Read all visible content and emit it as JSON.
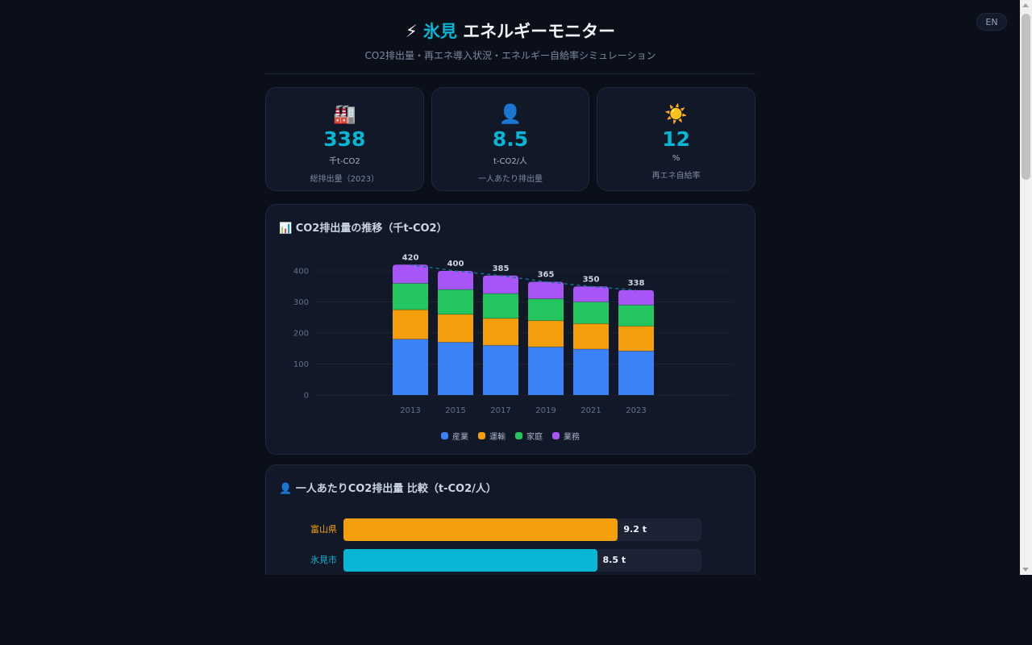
{
  "lang_toggle": "EN",
  "header": {
    "icon": "⚡",
    "title_accent": "氷見",
    "title_rest": " エネルギーモニター",
    "subtitle": "CO2排出量・再エネ導入状況・エネルギー自給率シミュレーション"
  },
  "stats": [
    {
      "icon": "🏭",
      "icon_name": "factory-icon",
      "value": "338",
      "unit": "千t-CO2",
      "label": "総排出量（2023）"
    },
    {
      "icon": "👤",
      "icon_name": "person-icon",
      "value": "8.5",
      "unit": "t-CO2/人",
      "label": "一人あたり排出量"
    },
    {
      "icon": "☀️",
      "icon_name": "sun-icon",
      "value": "12",
      "unit": "%",
      "label": "再エネ自給率"
    }
  ],
  "emissions_chart": {
    "icon": "📊",
    "title": "CO2排出量の推移（千t-CO2）"
  },
  "comparison": {
    "icon": "👤",
    "title": "一人あたりCO2排出量 比較（t-CO2/人）",
    "max": 12,
    "rows": [
      {
        "label": "富山県",
        "value": 9.2,
        "display": "9.2 t",
        "color": "#f59e0b"
      },
      {
        "label": "氷見市",
        "value": 8.5,
        "display": "8.5 t",
        "color": "#06b6d4"
      }
    ]
  },
  "colors": {
    "accent": "#06b6d4",
    "industry": "#3b82f6",
    "transport": "#f59e0b",
    "household": "#22c55e",
    "business": "#a855f7",
    "trend": "#0e7490"
  },
  "chart_data": {
    "type": "bar",
    "stacked": true,
    "title": "CO2排出量の推移（千t-CO2）",
    "xlabel": "",
    "ylabel": "千t-CO2",
    "categories": [
      "2013",
      "2015",
      "2017",
      "2019",
      "2021",
      "2023"
    ],
    "series": [
      {
        "name": "産業",
        "color": "#3b82f6",
        "values": [
          180,
          170,
          160,
          155,
          148,
          142
        ]
      },
      {
        "name": "運輸",
        "color": "#f59e0b",
        "values": [
          95,
          90,
          87,
          85,
          82,
          80
        ]
      },
      {
        "name": "家庭",
        "color": "#22c55e",
        "values": [
          85,
          80,
          80,
          70,
          70,
          68
        ]
      },
      {
        "name": "業務",
        "color": "#a855f7",
        "values": [
          60,
          60,
          58,
          55,
          50,
          48
        ]
      }
    ],
    "totals": [
      420,
      400,
      385,
      365,
      350,
      338
    ],
    "trend_line": {
      "style": "dashed",
      "values": [
        420,
        400,
        385,
        365,
        350,
        338
      ]
    },
    "yticks": [
      0,
      100,
      200,
      300,
      400
    ],
    "ylim": [
      0,
      400
    ],
    "grid": true,
    "legend_position": "bottom"
  }
}
